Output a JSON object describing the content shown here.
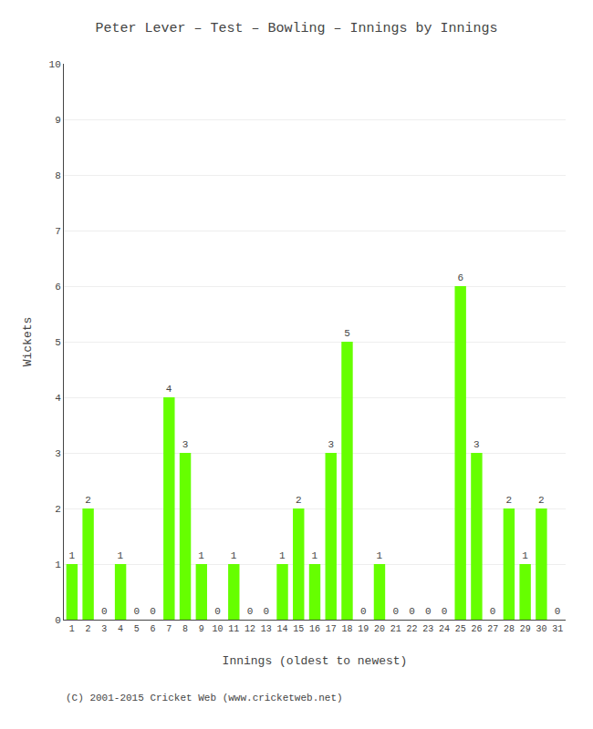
{
  "chart_data": {
    "type": "bar",
    "title": "Peter Lever – Test – Bowling – Innings by Innings",
    "x_label": "Innings (oldest to newest)",
    "y_label": "Wickets",
    "annotations": [
      "(C) 2001-2015 Cricket Web (www.cricketweb.net)"
    ],
    "categories": [
      "1",
      "2",
      "3",
      "4",
      "5",
      "6",
      "7",
      "8",
      "9",
      "10",
      "11",
      "12",
      "13",
      "14",
      "15",
      "16",
      "17",
      "18",
      "19",
      "20",
      "21",
      "22",
      "23",
      "24",
      "25",
      "26",
      "27",
      "28",
      "29",
      "30",
      "31"
    ],
    "values": [
      1,
      2,
      0,
      1,
      0,
      0,
      4,
      3,
      1,
      0,
      1,
      0,
      0,
      1,
      2,
      1,
      3,
      5,
      0,
      1,
      0,
      0,
      0,
      0,
      6,
      3,
      0,
      2,
      1,
      2,
      0
    ],
    "color": "#66ff00",
    "ylim": [
      0,
      10
    ],
    "yticks": [
      0,
      1,
      2,
      3,
      4,
      5,
      6,
      7,
      8,
      9,
      10
    ],
    "grid": true,
    "data_labels": true
  }
}
